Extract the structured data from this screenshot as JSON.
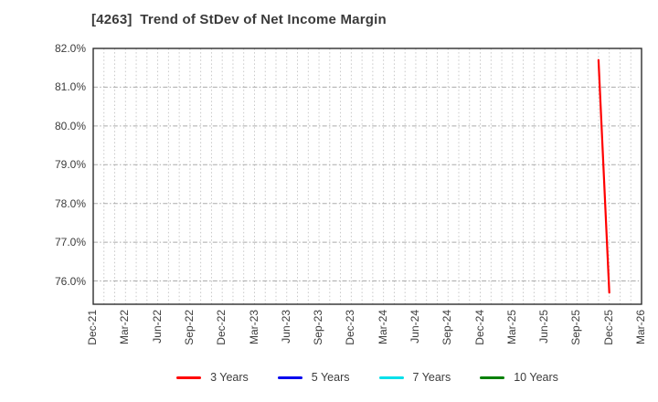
{
  "chart_data": {
    "type": "line",
    "title": "[4263]  Trend of StDev of Net Income Margin",
    "x_axis": {
      "start": "Dec-21",
      "end": "Mar-26",
      "tick_labels": [
        "Dec-21",
        "Mar-22",
        "Jun-22",
        "Sep-22",
        "Dec-22",
        "Mar-23",
        "Jun-23",
        "Sep-23",
        "Dec-23",
        "Mar-24",
        "Jun-24",
        "Sep-24",
        "Dec-24",
        "Mar-25",
        "Jun-25",
        "Sep-25",
        "Dec-25",
        "Mar-26"
      ],
      "tick_label_rotation_deg": 90,
      "minor_gridline_interval": "monthly"
    },
    "y_axis": {
      "unit": "%",
      "min": 75.4,
      "max": 82.0,
      "tick_values": [
        82.0,
        81.0,
        80.0,
        79.0,
        78.0,
        77.0,
        76.0
      ],
      "tick_labels": [
        "82.0%",
        "81.0%",
        "80.0%",
        "79.0%",
        "78.0%",
        "77.0%",
        "76.0%"
      ]
    },
    "grid": true,
    "legend_position": "bottom",
    "series": [
      {
        "name": "3 Years",
        "color": "#ff0000",
        "points": [
          {
            "x": "Nov-25",
            "y": 81.7
          },
          {
            "x": "Dec-25",
            "y": 75.7
          }
        ]
      },
      {
        "name": "5 Years",
        "color": "#0000ee",
        "points": []
      },
      {
        "name": "7 Years",
        "color": "#00e0ea",
        "points": []
      },
      {
        "name": "10 Years",
        "color": "#008000",
        "points": []
      }
    ]
  },
  "colors": {
    "background": "#ffffff",
    "title_text": "#3a3a3a",
    "axis_text": "#3c3c3c",
    "plot_border": "#2e2e2e",
    "grid_vertical": "#c2c2c2",
    "grid_horizontal": "#ababab",
    "series_red": "#ff0000",
    "series_blue": "#0000ee",
    "series_cyan": "#00e0ea",
    "series_green": "#008000"
  }
}
